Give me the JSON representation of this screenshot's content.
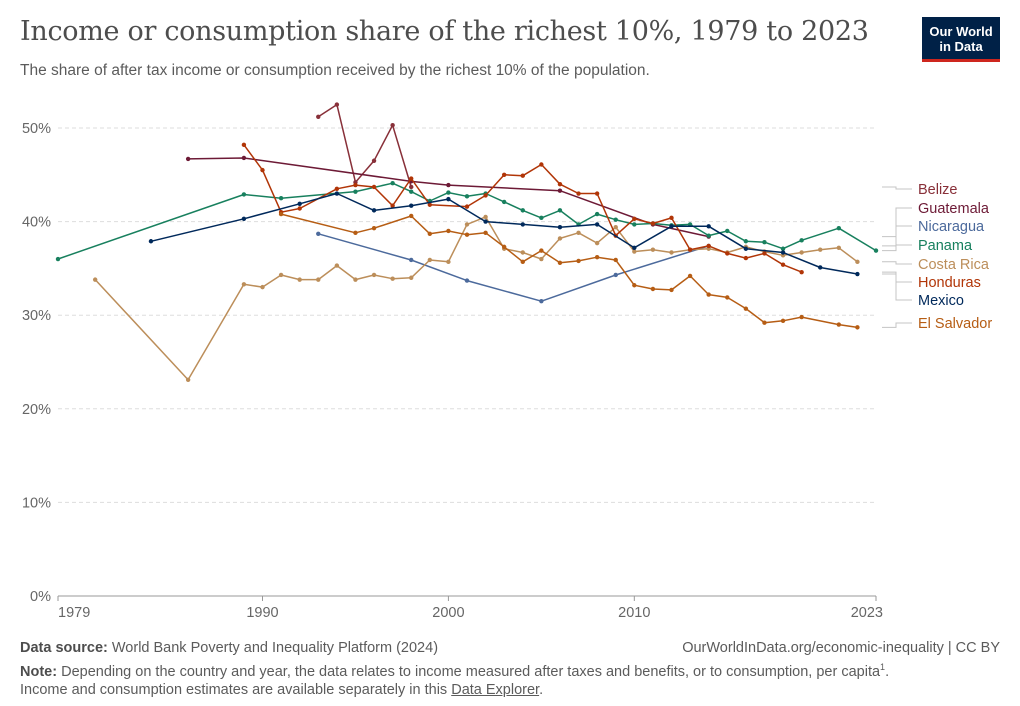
{
  "header": {
    "title": "Income or consumption share of the richest 10%, 1979 to 2023",
    "subtitle": "The share of after tax income or consumption received by the richest 10% of the population.",
    "logo_line1": "Our World",
    "logo_line2": "in Data"
  },
  "footer": {
    "source_label": "Data source:",
    "source_text": "World Bank Poverty and Inequality Platform (2024)",
    "attribution": "OurWorldInData.org/economic-inequality | CC BY",
    "note_label": "Note:",
    "note_text": "Depending on the country and year, the data relates to income measured after taxes and benefits, or to consumption, per capita",
    "note_sup": "1",
    "note_line2_pre": "Income and consumption estimates are available separately in this ",
    "note_link": "Data Explorer",
    "note_line2_post": "."
  },
  "chart_data": {
    "type": "line",
    "title": "Income or consumption share of the richest 10%, 1979 to 2023",
    "x_ticks": [
      1979,
      1990,
      2000,
      2010,
      2023
    ],
    "y_ticks": [
      0,
      10,
      20,
      30,
      40,
      50
    ],
    "y_tick_labels": [
      "0%",
      "10%",
      "20%",
      "30%",
      "40%",
      "50%"
    ],
    "xlim": [
      1979,
      2023
    ],
    "ylim": [
      0,
      50
    ],
    "grid": "horizontal dashed",
    "legend": "right, labels at line ends",
    "series": [
      {
        "name": "Belize",
        "color": "#883039",
        "points": [
          [
            1993,
            51.2
          ],
          [
            1994,
            52.5
          ],
          [
            1995,
            44.2
          ],
          [
            1996,
            46.5
          ],
          [
            1997,
            50.3
          ],
          [
            1998,
            43.7
          ]
        ]
      },
      {
        "name": "Guatemala",
        "color": "#6d1a36",
        "points": [
          [
            1986,
            46.7
          ],
          [
            1989,
            46.8
          ],
          [
            1998,
            44.3
          ],
          [
            2000,
            43.9
          ],
          [
            2006,
            43.3
          ],
          [
            2011,
            39.7
          ],
          [
            2014,
            38.4
          ]
        ]
      },
      {
        "name": "Nicaragua",
        "color": "#4c6a9c",
        "points": [
          [
            1993,
            38.7
          ],
          [
            1998,
            35.9
          ],
          [
            2001,
            33.7
          ],
          [
            2005,
            31.5
          ],
          [
            2009,
            34.3
          ],
          [
            2014,
            37.4
          ]
        ]
      },
      {
        "name": "Panama",
        "color": "#18805e",
        "points": [
          [
            1979,
            36.0
          ],
          [
            1989,
            42.9
          ],
          [
            1991,
            42.5
          ],
          [
            1995,
            43.2
          ],
          [
            1997,
            44.1
          ],
          [
            1998,
            43.2
          ],
          [
            1999,
            42.2
          ],
          [
            2000,
            43.1
          ],
          [
            2001,
            42.7
          ],
          [
            2002,
            43.0
          ],
          [
            2003,
            42.1
          ],
          [
            2004,
            41.2
          ],
          [
            2005,
            40.4
          ],
          [
            2006,
            41.2
          ],
          [
            2007,
            39.7
          ],
          [
            2008,
            40.8
          ],
          [
            2009,
            40.2
          ],
          [
            2010,
            39.7
          ],
          [
            2011,
            39.8
          ],
          [
            2012,
            39.6
          ],
          [
            2013,
            39.7
          ],
          [
            2014,
            38.5
          ],
          [
            2015,
            39.0
          ],
          [
            2016,
            37.9
          ],
          [
            2017,
            37.8
          ],
          [
            2018,
            37.1
          ],
          [
            2019,
            38.0
          ],
          [
            2021,
            39.3
          ],
          [
            2023,
            36.9
          ]
        ]
      },
      {
        "name": "Costa Rica",
        "color": "#bc8e5a",
        "points": [
          [
            1981,
            33.8
          ],
          [
            1986,
            23.1
          ],
          [
            1989,
            33.3
          ],
          [
            1990,
            33.0
          ],
          [
            1991,
            34.3
          ],
          [
            1992,
            33.8
          ],
          [
            1993,
            33.8
          ],
          [
            1994,
            35.3
          ],
          [
            1995,
            33.8
          ],
          [
            1996,
            34.3
          ],
          [
            1997,
            33.9
          ],
          [
            1998,
            34.0
          ],
          [
            1999,
            35.9
          ],
          [
            2000,
            35.7
          ],
          [
            2001,
            39.7
          ],
          [
            2002,
            40.5
          ],
          [
            2003,
            37.1
          ],
          [
            2004,
            36.7
          ],
          [
            2005,
            36.0
          ],
          [
            2006,
            38.2
          ],
          [
            2007,
            38.8
          ],
          [
            2008,
            37.7
          ],
          [
            2009,
            39.4
          ],
          [
            2010,
            36.8
          ],
          [
            2011,
            37.0
          ],
          [
            2012,
            36.7
          ],
          [
            2013,
            37.0
          ],
          [
            2014,
            37.1
          ],
          [
            2015,
            36.7
          ],
          [
            2016,
            37.3
          ],
          [
            2017,
            36.8
          ],
          [
            2018,
            36.4
          ],
          [
            2019,
            36.7
          ],
          [
            2020,
            37.0
          ],
          [
            2021,
            37.2
          ],
          [
            2022,
            35.7
          ]
        ]
      },
      {
        "name": "Honduras",
        "color": "#b13507",
        "points": [
          [
            1989,
            48.2
          ],
          [
            1990,
            45.5
          ],
          [
            1991,
            41.0
          ],
          [
            1992,
            41.4
          ],
          [
            1994,
            43.5
          ],
          [
            1995,
            43.9
          ],
          [
            1996,
            43.7
          ],
          [
            1997,
            41.7
          ],
          [
            1998,
            44.6
          ],
          [
            1999,
            41.8
          ],
          [
            2001,
            41.6
          ],
          [
            2002,
            42.8
          ],
          [
            2003,
            45.0
          ],
          [
            2004,
            44.9
          ],
          [
            2005,
            46.1
          ],
          [
            2006,
            44.0
          ],
          [
            2007,
            43.0
          ],
          [
            2008,
            43.0
          ],
          [
            2009,
            38.5
          ],
          [
            2010,
            40.3
          ],
          [
            2011,
            39.8
          ],
          [
            2012,
            40.4
          ],
          [
            2013,
            37.0
          ],
          [
            2014,
            37.4
          ],
          [
            2015,
            36.6
          ],
          [
            2016,
            36.1
          ],
          [
            2017,
            36.6
          ],
          [
            2018,
            35.4
          ],
          [
            2019,
            34.6
          ]
        ]
      },
      {
        "name": "Mexico",
        "color": "#00295b",
        "points": [
          [
            1984,
            37.9
          ],
          [
            1989,
            40.3
          ],
          [
            1992,
            41.9
          ],
          [
            1994,
            43.0
          ],
          [
            1996,
            41.2
          ],
          [
            1998,
            41.7
          ],
          [
            2000,
            42.4
          ],
          [
            2002,
            40.0
          ],
          [
            2004,
            39.7
          ],
          [
            2006,
            39.4
          ],
          [
            2008,
            39.7
          ],
          [
            2010,
            37.2
          ],
          [
            2012,
            39.5
          ],
          [
            2014,
            39.5
          ],
          [
            2016,
            37.1
          ],
          [
            2018,
            36.7
          ],
          [
            2020,
            35.1
          ],
          [
            2022,
            34.4
          ]
        ]
      },
      {
        "name": "El Salvador",
        "color": "#b65d14",
        "points": [
          [
            1991,
            40.8
          ],
          [
            1995,
            38.8
          ],
          [
            1996,
            39.3
          ],
          [
            1998,
            40.6
          ],
          [
            1999,
            38.7
          ],
          [
            2000,
            39.0
          ],
          [
            2001,
            38.6
          ],
          [
            2002,
            38.8
          ],
          [
            2003,
            37.3
          ],
          [
            2004,
            35.7
          ],
          [
            2005,
            36.9
          ],
          [
            2006,
            35.6
          ],
          [
            2007,
            35.8
          ],
          [
            2008,
            36.2
          ],
          [
            2009,
            35.9
          ],
          [
            2010,
            33.2
          ],
          [
            2011,
            32.8
          ],
          [
            2012,
            32.7
          ],
          [
            2013,
            34.2
          ],
          [
            2014,
            32.2
          ],
          [
            2015,
            31.9
          ],
          [
            2016,
            30.7
          ],
          [
            2017,
            29.2
          ],
          [
            2018,
            29.4
          ],
          [
            2019,
            29.8
          ],
          [
            2021,
            29.0
          ],
          [
            2022,
            28.7
          ]
        ]
      }
    ]
  }
}
